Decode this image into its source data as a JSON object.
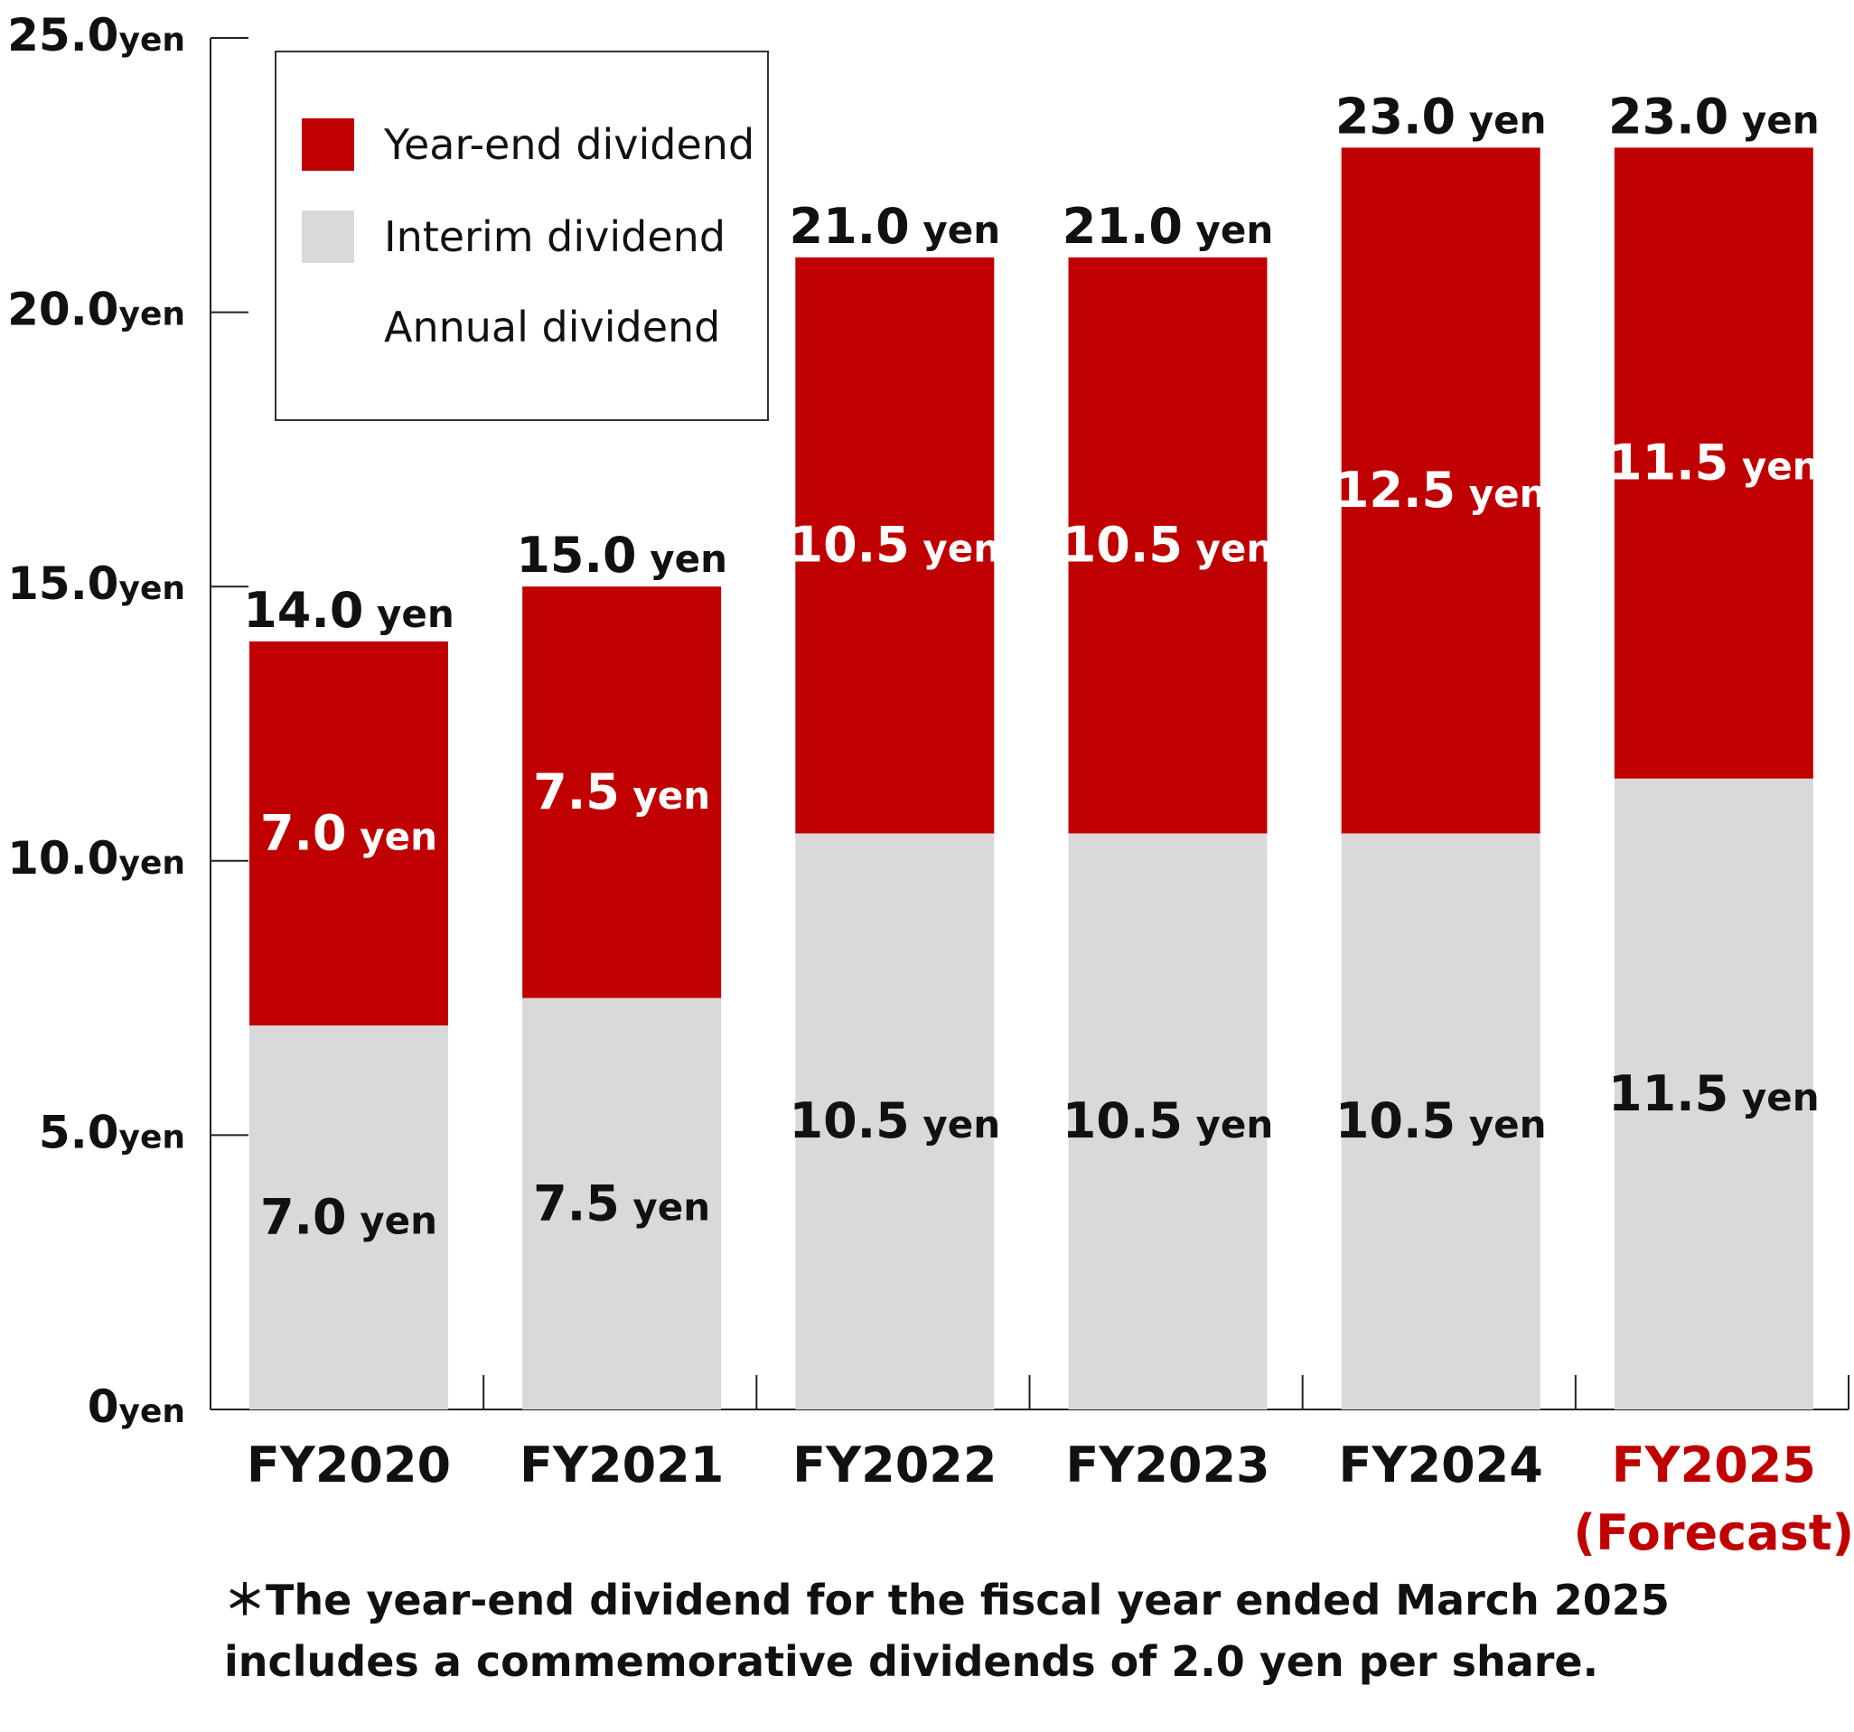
{
  "chart_data": {
    "type": "bar",
    "stacked": true,
    "categories": [
      "FY2020",
      "FY2021",
      "FY2022",
      "FY2023",
      "FY2024",
      "FY2025"
    ],
    "category_sublabels": [
      "",
      "",
      "",
      "",
      "",
      "(Forecast)"
    ],
    "highlight_category_index": 5,
    "unit": "yen",
    "series": [
      {
        "name": "Interim dividend",
        "values": [
          7.0,
          7.5,
          10.5,
          10.5,
          10.5,
          11.5
        ],
        "color": "#d9d9d9"
      },
      {
        "name": "Year-end dividend",
        "values": [
          7.0,
          7.5,
          10.5,
          10.5,
          12.5,
          11.5
        ],
        "color": "#c00000"
      }
    ],
    "totals": [
      14.0,
      15.0,
      21.0,
      21.0,
      23.0,
      23.0
    ],
    "ylim": [
      0,
      25
    ],
    "yticks": [
      {
        "value": 0,
        "num": "0",
        "unit": "yen"
      },
      {
        "value": 5,
        "num": "5.0",
        "unit": "yen"
      },
      {
        "value": 10,
        "num": "10.0",
        "unit": "yen"
      },
      {
        "value": 15,
        "num": "15.0",
        "unit": "yen"
      },
      {
        "value": 20,
        "num": "20.0",
        "unit": "yen"
      },
      {
        "value": 25,
        "num": "25.0",
        "unit": "yen"
      }
    ],
    "legend": {
      "position": "top-left",
      "items": [
        {
          "label": "Year-end dividend",
          "color": "#c00000"
        },
        {
          "label": "Interim dividend",
          "color": "#d9d9d9"
        },
        {
          "label": "Annual dividend",
          "color": null
        }
      ]
    },
    "colors": {
      "text": "#111111",
      "highlight": "#c00000",
      "axis": "#222222"
    }
  },
  "note": {
    "line1": "＊The year-end dividend for the fiscal year ended March 2025",
    "line2": "includes a commemorative dividends of 2.0 yen per share."
  }
}
